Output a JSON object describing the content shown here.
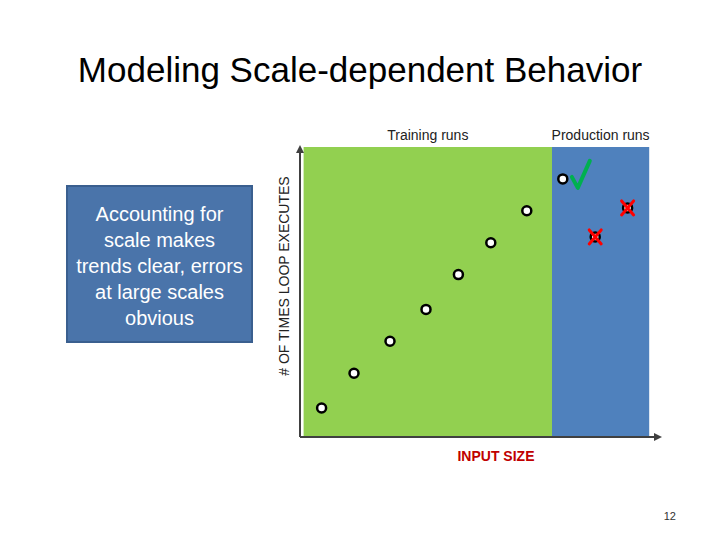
{
  "chart_data": {
    "type": "scatter",
    "title": "Modeling Scale-dependent Behavior",
    "x_label": "INPUT SIZE",
    "y_label": "# OF TIMES LOOP EXECUTES",
    "xlim": [
      0,
      10
    ],
    "ylim": [
      0,
      10
    ],
    "tick_labels": false,
    "grid": false,
    "regions": [
      {
        "label": "Training runs",
        "x": [
          0.1,
          7.0
        ],
        "color": "#92d050"
      },
      {
        "label": "Production runs",
        "x": [
          7.0,
          9.7
        ],
        "color": "#4f81bd"
      }
    ],
    "series": [
      {
        "x": [
          0.6,
          1.5,
          2.5,
          3.5,
          4.4,
          5.3,
          6.3
        ],
        "values": [
          1.0,
          2.2,
          3.3,
          4.4,
          5.6,
          6.7,
          7.8
        ],
        "color": "#000000",
        "marker": "circle"
      },
      {
        "x": [
          7.3
        ],
        "values": [
          8.9
        ],
        "color": "#00b050",
        "marker": "check"
      },
      {
        "x": [
          9.1,
          8.2
        ],
        "values": [
          7.9,
          6.9
        ],
        "color": "#ff0000",
        "marker": "cross"
      }
    ],
    "annotations": [
      {
        "text": "Accounting for scale makes trends clear, errors at large scales obvious"
      }
    ]
  },
  "slide": {
    "page_number": "12"
  }
}
